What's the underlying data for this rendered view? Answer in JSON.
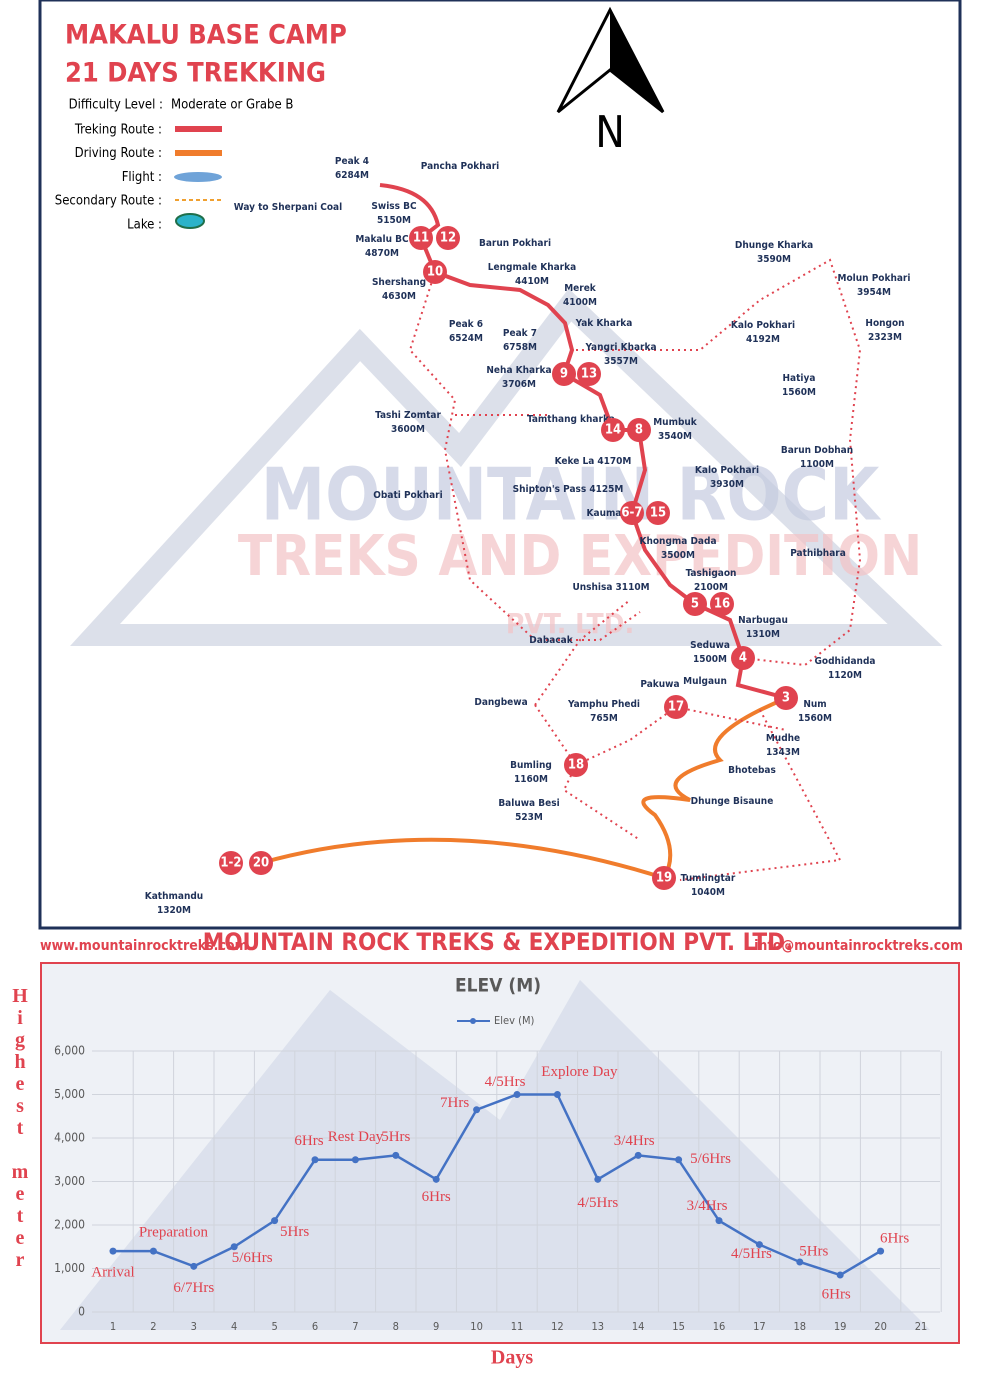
{
  "header": {
    "title_line1": "MAKALU BASE CAMP",
    "title_line2": "21 DAYS TREKKING",
    "north": "N"
  },
  "legend": {
    "difficulty_label": "Difficulty Level :",
    "difficulty_value": "Moderate or Grabe B",
    "items": [
      "Treking Route :",
      "Driving Route :",
      "Flight :",
      "Secondary Route :",
      "Lake :"
    ]
  },
  "places": [
    {
      "name": "Peak 4",
      "elev": "6284M"
    },
    {
      "name": "Pancha Pokhari"
    },
    {
      "name": "Way to Sherpani Coal"
    },
    {
      "name": "Swiss BC",
      "elev": "5150M"
    },
    {
      "name": "Makalu BC",
      "elev": "4870M"
    },
    {
      "name": "Barun Pokhari"
    },
    {
      "name": "Lengmale Kharka",
      "elev": "4410M"
    },
    {
      "name": "Shershang",
      "elev": "4630M"
    },
    {
      "name": "Merek",
      "elev": "4100M"
    },
    {
      "name": "Peak 6",
      "elev": "6524M"
    },
    {
      "name": "Peak 7",
      "elev": "6758M"
    },
    {
      "name": "Yak Kharka"
    },
    {
      "name": "Yangri Kharka",
      "elev": "3557M"
    },
    {
      "name": "Neha Kharka",
      "elev": "3706M"
    },
    {
      "name": "Tashi Zomtar",
      "elev": "3600M"
    },
    {
      "name": "Tamthang kharka"
    },
    {
      "name": "Mumbuk",
      "elev": "3540M"
    },
    {
      "name": "Keke La 4170M"
    },
    {
      "name": "Shipton's Pass 4125M"
    },
    {
      "name": "Kauma"
    },
    {
      "name": "Obati Pokhari"
    },
    {
      "name": "Khongma Dada",
      "elev": "3500M"
    },
    {
      "name": "Tashigaon",
      "elev": "2100M"
    },
    {
      "name": "Unshisa 3110M"
    },
    {
      "name": "Dabacak"
    },
    {
      "name": "Narbugau",
      "elev": "1310M"
    },
    {
      "name": "Seduwa",
      "elev": "1500M"
    },
    {
      "name": "Godhidanda",
      "elev": "1120M"
    },
    {
      "name": "Pakuwa"
    },
    {
      "name": "Mulgaun"
    },
    {
      "name": "Num",
      "elev": "1560M"
    },
    {
      "name": "Yamphu Phedi",
      "elev": "765M"
    },
    {
      "name": "Dangbewa"
    },
    {
      "name": "Mudhe",
      "elev": "1343M"
    },
    {
      "name": "Bhotebas"
    },
    {
      "name": "Bumling",
      "elev": "1160M"
    },
    {
      "name": "Baluwa Besi",
      "elev": "523M"
    },
    {
      "name": "Dhunge Bisaune"
    },
    {
      "name": "Tumlingtar",
      "elev": "1040M"
    },
    {
      "name": "Kathmandu",
      "elev": "1320M"
    },
    {
      "name": "Dhunge Kharka",
      "elev": "3590M"
    },
    {
      "name": "Molun Pokhari",
      "elev": "3954M"
    },
    {
      "name": "Kalo Pokhari",
      "elev": "4192M"
    },
    {
      "name": "Hongon",
      "elev": "2323M"
    },
    {
      "name": "Hatiya",
      "elev": "1560M"
    },
    {
      "name": "Barun Dobhan",
      "elev": "1100M"
    },
    {
      "name": "Kalo Pokhari",
      "elev": "3930M"
    },
    {
      "name": "Pathibhara"
    }
  ],
  "stops": [
    "11",
    "12",
    "10",
    "9",
    "13",
    "14",
    "8",
    "6-7",
    "15",
    "5",
    "16",
    "4",
    "3",
    "17",
    "18",
    "19",
    "1-2",
    "20"
  ],
  "watermark": [
    "MOUNTAIN ROCK",
    "TREKS AND EXPEDITION",
    "PVT. LTD."
  ],
  "footer": {
    "website": "www.mountainrocktreks.com",
    "company": "MOUNTAIN ROCK TREKS & EXPEDITION PVT. LTD.",
    "email": "info@mountainrocktreks.com"
  },
  "chart_data": {
    "type": "line",
    "title": "ELEV (M)",
    "y_label": "Highest meter",
    "x_label": "Days",
    "categories": [
      "1",
      "2",
      "3",
      "4",
      "5",
      "6",
      "7",
      "8",
      "9",
      "10",
      "11",
      "12",
      "13",
      "14",
      "15",
      "16",
      "17",
      "18",
      "19",
      "20",
      "21"
    ],
    "series": [
      {
        "name": "Elev (M)",
        "color": "#4472c4",
        "values": [
          1400,
          1400,
          1050,
          1500,
          2100,
          3500,
          3500,
          3600,
          3050,
          4650,
          5000,
          5000,
          3050,
          3600,
          3500,
          2100,
          1550,
          1150,
          850,
          1400,
          null
        ]
      }
    ],
    "ylim": [
      0,
      6000
    ],
    "yticks": [
      0,
      {
        "value": 1000,
        "label": "1,000"
      },
      {
        "value": 2000,
        "label": "2,000"
      },
      {
        "value": 3000,
        "label": "3,000"
      },
      {
        "value": 4000,
        "label": "4,000"
      },
      {
        "value": 5000,
        "label": "5,000"
      },
      {
        "value": 6000,
        "label": "6,000"
      }
    ],
    "grid": true,
    "annotation_color": "#e0434f",
    "annotations": [
      {
        "day": 1,
        "text": "Arrival"
      },
      {
        "day": 2,
        "text": "Preparation"
      },
      {
        "day": 3,
        "text": "6/7Hrs"
      },
      {
        "day": 4,
        "text": "5/6Hrs"
      },
      {
        "day": 5,
        "text": "5Hrs"
      },
      {
        "day": 6,
        "text": "6Hrs"
      },
      {
        "day": 7,
        "text": "Rest Day"
      },
      {
        "day": 8,
        "text": "5Hrs"
      },
      {
        "day": 9,
        "text": "6Hrs"
      },
      {
        "day": 10,
        "text": "7Hrs"
      },
      {
        "day": 11,
        "text": "4/5Hrs"
      },
      {
        "day": 12,
        "text": "Explore Day"
      },
      {
        "day": 13,
        "text": "4/5Hrs"
      },
      {
        "day": 14,
        "text": "3/4Hrs"
      },
      {
        "day": 15,
        "text": "5/6Hrs"
      },
      {
        "day": 16,
        "text": "3/4Hrs"
      },
      {
        "day": 17,
        "text": "4/5Hrs"
      },
      {
        "day": 18,
        "text": "5Hrs"
      },
      {
        "day": 19,
        "text": "6Hrs"
      },
      {
        "day": 20,
        "text": "6Hrs"
      }
    ]
  }
}
